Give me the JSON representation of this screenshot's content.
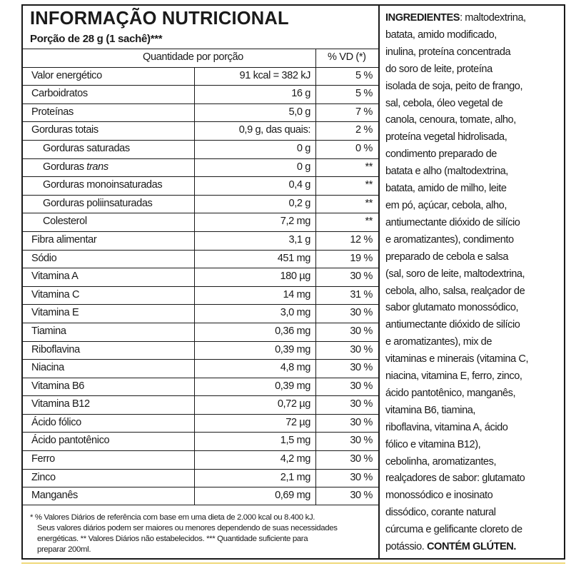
{
  "title": "INFORMAÇÃO NUTRICIONAL",
  "portion": "Porção de 28 g (1 sachê)***",
  "header": {
    "quantity": "Quantidade por porção",
    "vd": "% VD (*)"
  },
  "rows": [
    {
      "name": "Valor energético",
      "amount": "91 kcal = 382 kJ",
      "vd": "5 %"
    },
    {
      "name": "Carboidratos",
      "amount": "16 g",
      "vd": "5 %"
    },
    {
      "name": "Proteínas",
      "amount": "5,0 g",
      "vd": "7 %"
    },
    {
      "name": "Gorduras totais",
      "amount": "0,9 g, das quais:",
      "vd": "2 %"
    },
    {
      "name": "Gorduras saturadas",
      "amount": "0 g",
      "vd": "0 %",
      "indent": true
    },
    {
      "name": "Gorduras ",
      "name_italic": "trans",
      "amount": "0 g",
      "vd": "**",
      "indent": true
    },
    {
      "name": "Gorduras monoinsaturadas",
      "amount": "0,4 g",
      "vd": "**",
      "indent": true
    },
    {
      "name": "Gorduras poliinsaturadas",
      "amount": "0,2 g",
      "vd": "**",
      "indent": true
    },
    {
      "name": "Colesterol",
      "amount": "7,2 mg",
      "vd": "**",
      "indent": true
    },
    {
      "name": "Fibra alimentar",
      "amount": "3,1 g",
      "vd": "12 %"
    },
    {
      "name": "Sódio",
      "amount": "451 mg",
      "vd": "19 %"
    },
    {
      "name": "Vitamina A",
      "amount": "180 µg",
      "vd": "30 %"
    },
    {
      "name": "Vitamina C",
      "amount": "14 mg",
      "vd": "31 %"
    },
    {
      "name": "Vitamina E",
      "amount": "3,0 mg",
      "vd": "30 %"
    },
    {
      "name": "Tiamina",
      "amount": "0,36 mg",
      "vd": "30 %"
    },
    {
      "name": "Riboflavina",
      "amount": "0,39 mg",
      "vd": "30 %"
    },
    {
      "name": "Niacina",
      "amount": "4,8 mg",
      "vd": "30 %"
    },
    {
      "name": "Vitamina B6",
      "amount": "0,39 mg",
      "vd": "30 %"
    },
    {
      "name": "Vitamina B12",
      "amount": "0,72 µg",
      "vd": "30 %"
    },
    {
      "name": "Ácido fólico",
      "amount": "72 µg",
      "vd": "30 %"
    },
    {
      "name": "Ácido pantotênico",
      "amount": "1,5 mg",
      "vd": "30 %"
    },
    {
      "name": "Ferro",
      "amount": "4,2 mg",
      "vd": "30 %"
    },
    {
      "name": "Zinco",
      "amount": "2,1 mg",
      "vd": "30 %"
    },
    {
      "name": "Manganês",
      "amount": "0,69 mg",
      "vd": "30 %"
    }
  ],
  "footnote": [
    "* % Valores Diários de referência com base em uma dieta de 2.000 kcal ou 8.400 kJ.",
    "Seus valores diários podem ser maiores ou menores dependendo de suas necessidades",
    "energéticas. ** Valores Diários não estabelecidos. *** Quantidade suficiente para",
    "preparar 200ml."
  ],
  "ingredients": {
    "heading": "INGREDIENTES",
    "lines": [
      ": maltodextrina,",
      "batata, amido modificado,",
      "inulina, proteína concentrada",
      "do soro de leite, proteína",
      "isolada de soja, peito de frango,",
      "sal, cebola, óleo vegetal de",
      "canola, cenoura, tomate, alho,",
      "proteína vegetal hidrolisada,",
      "condimento preparado de",
      "batata e alho (maltodextrina,",
      "batata, amido de milho, leite",
      "em pó, açúcar, cebola, alho,",
      "antiumectante dióxido de silício",
      "e aromatizantes), condimento",
      "preparado de cebola e salsa",
      "(sal, soro de leite, maltodextrina,",
      "cebola, alho, salsa, realçador de",
      "sabor glutamato monossódico,",
      "antiumectante dióxido de silício",
      "e aromatizantes), mix de",
      "vitaminas e minerais (vitamina C,",
      "niacina, vitamina E, ferro, zinco,",
      "ácido pantotênico, manganês,",
      "vitamina B6, tiamina,",
      "riboflavina, vitamina A, ácido",
      "fólico e vitamina B12),",
      "cebolinha, aromatizantes,",
      "realçadores de sabor: glutamato",
      "monossódico e inosinato",
      "dissódico, corante natural",
      "cúrcuma e gelificante cloreto de",
      "potássio. "
    ],
    "gluten": "CONTÉM GLÚTEN."
  }
}
